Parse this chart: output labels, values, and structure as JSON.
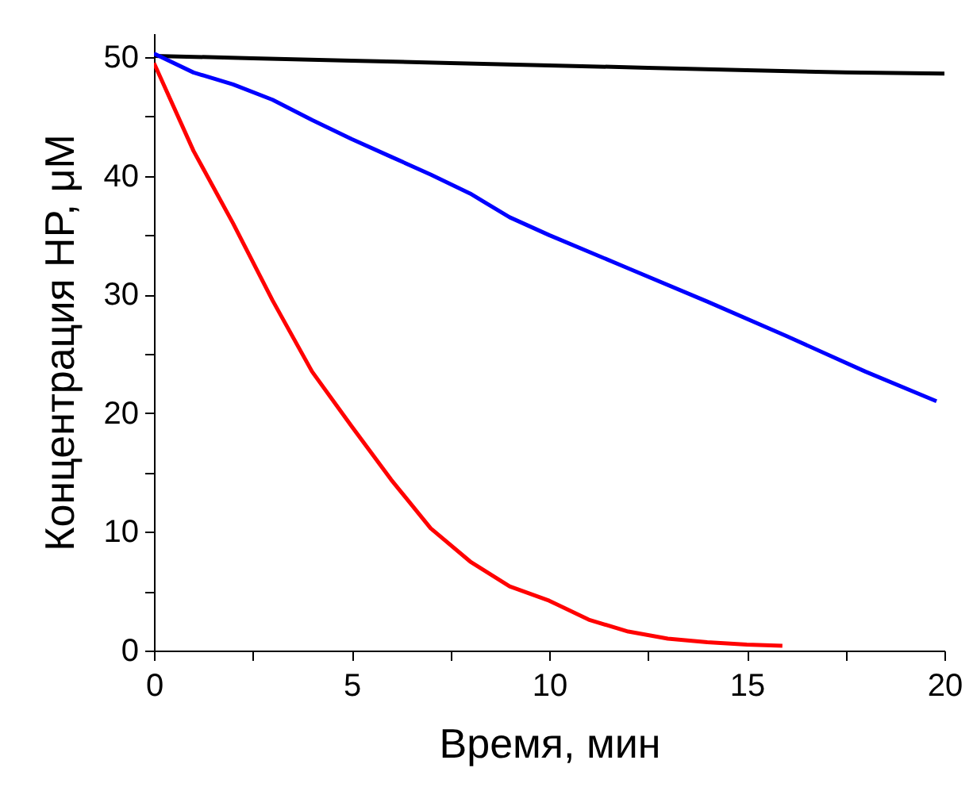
{
  "chart_data": {
    "type": "line",
    "xlabel": "Время, мин",
    "ylabel": "Концентрация HP, μM",
    "xlim": [
      0,
      20
    ],
    "ylim": [
      0,
      52
    ],
    "xticks": [
      0,
      {
        "value": 2.5,
        "label": null
      },
      5,
      {
        "value": 7.5,
        "label": null
      },
      10,
      {
        "value": 12.5,
        "label": null
      },
      15,
      {
        "value": 17.5,
        "label": null
      },
      20
    ],
    "yticks": [
      0,
      {
        "value": 5,
        "label": null
      },
      10,
      {
        "value": 15,
        "label": null
      },
      20,
      {
        "value": 25,
        "label": null
      },
      30,
      {
        "value": 35,
        "label": null
      },
      40,
      {
        "value": 45,
        "label": null
      },
      50
    ],
    "grid": false,
    "marker": "none",
    "line_style": "solid",
    "series": [
      {
        "color": "#000000",
        "x": [
          0,
          2.5,
          5,
          7.5,
          10,
          12.5,
          15,
          17.5,
          20
        ],
        "values": [
          50.1,
          49.9,
          49.7,
          49.5,
          49.3,
          49.1,
          48.9,
          48.7,
          48.6
        ]
      },
      {
        "color": "#0000ff",
        "x": [
          0,
          1,
          2,
          3,
          4,
          5,
          6,
          7,
          8,
          9,
          10,
          12,
          14,
          16,
          18,
          19.8
        ],
        "values": [
          50.3,
          48.7,
          47.7,
          46.4,
          44.7,
          43.1,
          41.6,
          40.1,
          38.5,
          36.5,
          35.0,
          32.2,
          29.4,
          26.5,
          23.5,
          21.0
        ]
      },
      {
        "color": "#ff0000",
        "x": [
          0,
          1,
          2,
          3,
          4,
          5,
          6,
          7,
          8,
          9,
          10,
          11,
          12,
          13,
          14,
          15,
          15.9
        ],
        "values": [
          49.5,
          42.1,
          36.0,
          29.5,
          23.5,
          18.9,
          14.4,
          10.3,
          7.5,
          5.4,
          4.2,
          2.6,
          1.6,
          1.0,
          0.7,
          0.5,
          0.4
        ]
      }
    ]
  }
}
